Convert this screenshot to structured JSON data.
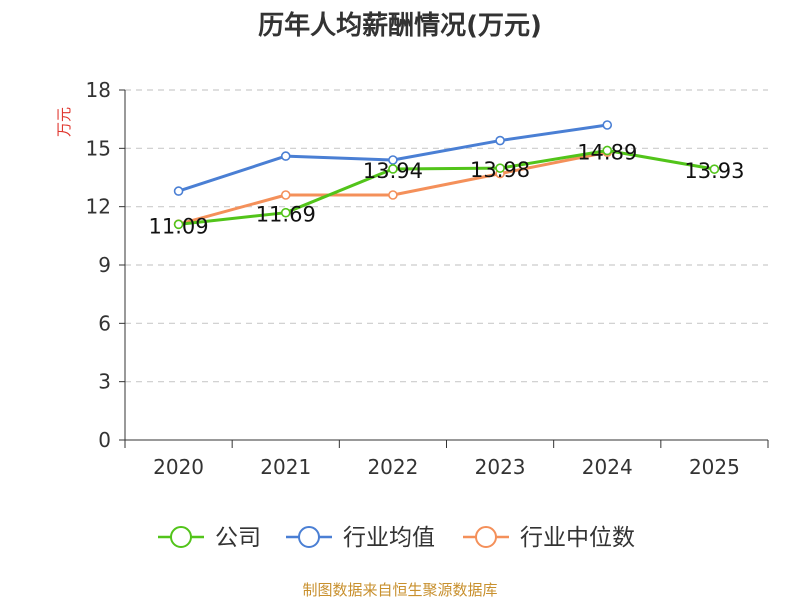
{
  "chart_data": {
    "type": "line",
    "title": "历年人均薪酬情况(万元)",
    "ylabel": "万元",
    "xlabel": "",
    "categories": [
      "2020",
      "2021",
      "2022",
      "2023",
      "2024",
      "2025"
    ],
    "ylim": [
      0,
      18
    ],
    "yticks": [
      0,
      3,
      6,
      9,
      12,
      15,
      18
    ],
    "grid": true,
    "legend_position": "bottom",
    "series": [
      {
        "name": "公司",
        "color": "#52c41a",
        "values": [
          11.09,
          11.69,
          13.94,
          13.98,
          14.89,
          13.93
        ],
        "labels": [
          "11.09",
          "11.69",
          "13.94",
          "13.98",
          "14.89",
          "13.93"
        ]
      },
      {
        "name": "行业均值",
        "color": "#4a7fd4",
        "values": [
          12.8,
          14.6,
          14.4,
          15.4,
          16.2,
          null
        ]
      },
      {
        "name": "行业中位数",
        "color": "#f4905a",
        "values": [
          11.1,
          12.6,
          12.6,
          13.7,
          14.8,
          null
        ]
      }
    ]
  },
  "source_text": "制图数据来自恒生聚源数据库",
  "colors": {
    "ylabel": "#e0372f",
    "source": "#c8902e",
    "axis": "#333333",
    "grid": "#cccccc"
  }
}
